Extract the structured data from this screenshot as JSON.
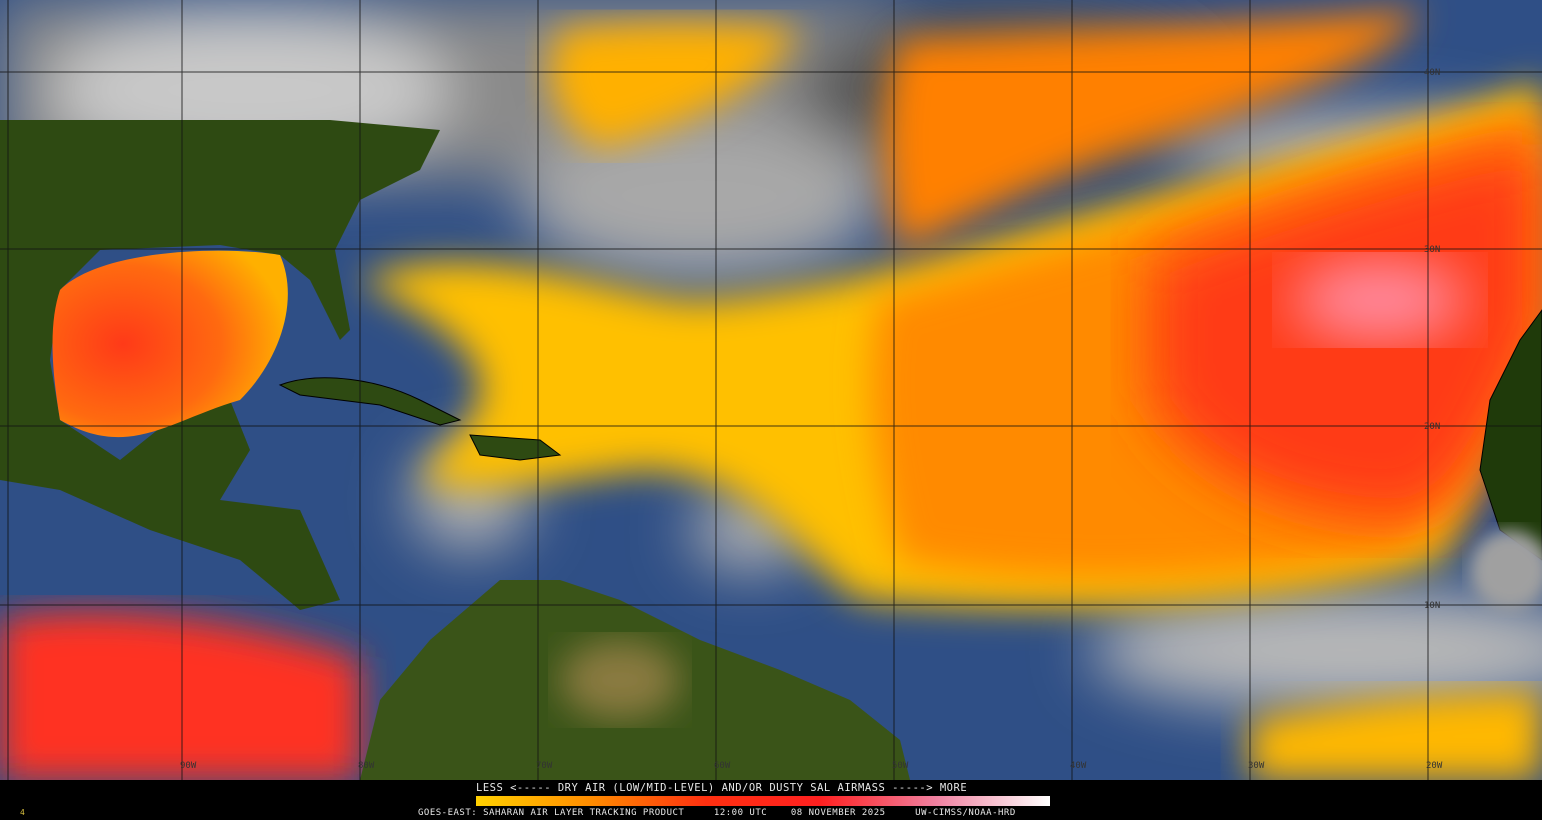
{
  "product": {
    "satellite": "GOES-EAST",
    "name": "SAHARAN AIR LAYER TRACKING PRODUCT",
    "time": "12:00 UTC",
    "date": "08 NOVEMBER 2025",
    "credit": "UW-CIMSS/NOAA-HRD",
    "footer_text": "GOES-EAST: SAHARAN AIR LAYER TRACKING PRODUCT     12:00 UTC    08 NOVEMBER 2025     UW-CIMSS/NOAA-HRD",
    "corner_mark": "4"
  },
  "legend": {
    "title": "LESS <----- DRY AIR (LOW/MID-LEVEL) AND/OR DUSTY SAL AIRMASS -----> MORE",
    "colors": [
      "#ffd000",
      "#ff8c00",
      "#ff3010",
      "#ff2020",
      "#f080a0",
      "#ffffff"
    ]
  },
  "grid": {
    "latitude_labels": [
      "40N",
      "30N",
      "20N",
      "10N"
    ],
    "longitude_labels": [
      "90W",
      "80W",
      "70W",
      "60W",
      "50W",
      "40W",
      "30W",
      "20W"
    ]
  },
  "colors": {
    "land": "#2e4a12",
    "ocean": "#2f4f86",
    "cloud": "#bdbdbd",
    "sal_low": "#ffd400",
    "sal_mid": "#ff7a00",
    "sal_high": "#ff2a1a"
  }
}
